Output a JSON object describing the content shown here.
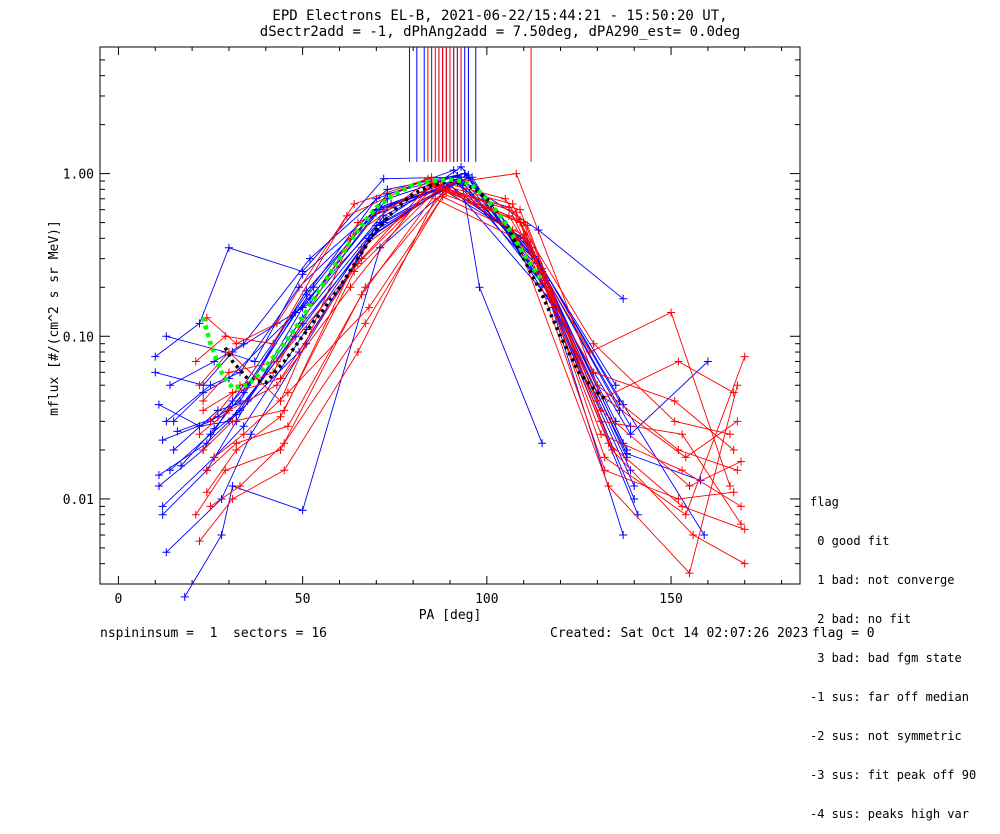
{
  "title_line1": "EPD Electrons EL-B, 2021-06-22/15:44:21 - 15:50:20 UT,",
  "title_line2": "dSectr2add = -1, dPhAng2add = 7.50deg, dPA290_est=   0.0deg",
  "footer": {
    "left": "nspininsum =  1  sectors = 16",
    "created": "Created: Sat Oct 14 02:07:26 2023",
    "flag": "flag = 0"
  },
  "legend": {
    "title": "flag",
    "items": [
      " 0 good fit",
      " 1 bad: not converge",
      " 2 bad: no fit",
      " 3 bad: bad fgm state",
      "-1 sus: far off median",
      "-2 sus: not symmetric",
      "-3 sus: fit peak off 90",
      "-4 sus: peaks high var"
    ]
  },
  "colors": {
    "blue": "#0000ff",
    "red": "#ff0000",
    "green": "#00ff00",
    "black": "#000000"
  },
  "chart_data": {
    "type": "line",
    "xlabel": "PA [deg]",
    "ylabel": "mflux [#/(cm^2 s sr MeV)]",
    "xlim": [
      -5,
      185
    ],
    "ylim": [
      0.003,
      6
    ],
    "yscale": "log",
    "x_ticks": [
      0,
      50,
      100,
      150
    ],
    "y_ticks": [
      {
        "value": 0.01,
        "label": "0.01"
      },
      {
        "value": 0.1,
        "label": "0.10"
      },
      {
        "value": 1.0,
        "label": "1.00"
      }
    ],
    "peak_markers": {
      "blue_x": [
        79,
        81,
        83,
        85,
        87,
        88,
        89,
        90,
        91,
        92,
        93,
        94,
        95,
        97
      ],
      "red_x": [
        84,
        85,
        86,
        87,
        88,
        89,
        90,
        91,
        92,
        93,
        112
      ],
      "y_from": 1.18
    },
    "median_black": {
      "x": [
        29,
        31,
        35,
        40,
        45,
        50,
        55,
        60,
        65,
        70,
        75,
        80,
        85,
        90,
        95,
        100,
        105,
        110,
        115,
        120,
        125,
        130,
        133
      ],
      "y": [
        0.085,
        0.07,
        0.055,
        0.052,
        0.07,
        0.1,
        0.14,
        0.2,
        0.3,
        0.45,
        0.6,
        0.75,
        0.85,
        0.9,
        0.85,
        0.7,
        0.5,
        0.3,
        0.18,
        0.1,
        0.06,
        0.045,
        0.04
      ]
    },
    "fit_green": {
      "x": [
        23,
        25,
        28,
        31,
        35,
        40,
        45,
        50,
        55,
        60,
        65,
        70,
        75,
        80,
        85,
        90,
        93,
        96,
        100,
        105,
        110,
        115
      ],
      "y": [
        0.13,
        0.09,
        0.06,
        0.048,
        0.05,
        0.065,
        0.09,
        0.13,
        0.2,
        0.3,
        0.45,
        0.62,
        0.75,
        0.85,
        0.9,
        0.92,
        0.9,
        0.85,
        0.7,
        0.5,
        0.32,
        0.22
      ]
    },
    "series": [
      {
        "color": "blue",
        "x": [
          10,
          22,
          30,
          50,
          72,
          92,
          114,
          137
        ],
        "y": [
          0.075,
          0.12,
          0.35,
          0.25,
          0.93,
          0.95,
          0.45,
          0.17
        ]
      },
      {
        "color": "blue",
        "x": [
          11,
          23,
          31,
          51,
          70,
          91,
          113,
          135
        ],
        "y": [
          0.012,
          0.02,
          0.04,
          0.18,
          0.7,
          1.05,
          0.3,
          0.03
        ]
      },
      {
        "color": "blue",
        "x": [
          12,
          24,
          32,
          50,
          71,
          93,
          115,
          138
        ],
        "y": [
          0.008,
          0.015,
          0.03,
          0.15,
          0.6,
          0.9,
          0.25,
          0.02
        ]
      },
      {
        "color": "blue",
        "x": [
          13,
          25,
          33,
          49,
          69,
          90,
          112,
          136
        ],
        "y": [
          0.03,
          0.05,
          0.06,
          0.2,
          0.55,
          0.85,
          0.35,
          0.04
        ]
      },
      {
        "color": "blue",
        "x": [
          14,
          26,
          34,
          52,
          73,
          94,
          116,
          139
        ],
        "y": [
          0.05,
          0.07,
          0.09,
          0.3,
          0.8,
          1.0,
          0.2,
          0.015
        ]
      },
      {
        "color": "blue",
        "x": [
          15,
          27,
          35,
          50,
          72,
          95,
          117,
          140
        ],
        "y": [
          0.02,
          0.035,
          0.04,
          0.12,
          0.5,
          0.95,
          0.18,
          0.01
        ]
      },
      {
        "color": "blue",
        "x": [
          13,
          28,
          36,
          51,
          70,
          92,
          114,
          137
        ],
        "y": [
          0.0047,
          0.01,
          0.025,
          0.09,
          0.45,
          0.9,
          0.28,
          0.006
        ]
      },
      {
        "color": "blue",
        "x": [
          11,
          22,
          30,
          48,
          68,
          88,
          110,
          135
        ],
        "y": [
          0.038,
          0.028,
          0.03,
          0.1,
          0.4,
          0.8,
          0.4,
          0.05
        ]
      },
      {
        "color": "blue",
        "x": [
          10,
          23,
          31,
          52,
          74,
          96,
          118,
          141
        ],
        "y": [
          0.06,
          0.05,
          0.08,
          0.16,
          0.65,
          0.95,
          0.15,
          0.008
        ]
      },
      {
        "color": "blue",
        "x": [
          14,
          25,
          33,
          50,
          71,
          93,
          115,
          137
        ],
        "y": [
          0.015,
          0.025,
          0.035,
          0.13,
          0.5,
          1.1,
          0.26,
          0.022
        ]
      },
      {
        "color": "blue",
        "x": [
          12,
          26,
          34,
          51,
          72,
          91,
          116,
          138
        ],
        "y": [
          0.009,
          0.018,
          0.028,
          0.11,
          0.55,
          0.92,
          0.22,
          0.018
        ]
      },
      {
        "color": "blue",
        "x": [
          16,
          27,
          35,
          53,
          73,
          94,
          112,
          139
        ],
        "y": [
          0.026,
          0.032,
          0.05,
          0.2,
          0.75,
          1.0,
          0.33,
          0.028
        ]
      },
      {
        "color": "blue",
        "x": [
          13,
          29,
          37,
          50,
          70,
          92,
          113,
          136
        ],
        "y": [
          0.1,
          0.08,
          0.07,
          0.24,
          0.6,
          0.88,
          0.31,
          0.035
        ]
      },
      {
        "color": "blue",
        "x": [
          11,
          24,
          32,
          49,
          69,
          90,
          117,
          140
        ],
        "y": [
          0.014,
          0.022,
          0.033,
          0.08,
          0.42,
          0.86,
          0.17,
          0.012
        ]
      },
      {
        "color": "blue",
        "x": [
          18,
          28,
          31,
          50,
          71,
          93,
          98,
          115
        ],
        "y": [
          0.0025,
          0.006,
          0.012,
          0.0085,
          0.35,
          0.95,
          0.2,
          0.022
        ]
      },
      {
        "color": "blue",
        "x": [
          15,
          23,
          30,
          52,
          71,
          95,
          114,
          138,
          158
        ],
        "y": [
          0.03,
          0.045,
          0.055,
          0.17,
          0.62,
          0.98,
          0.24,
          0.019,
          0.013
        ]
      },
      {
        "color": "blue",
        "x": [
          12,
          25,
          33,
          48,
          70,
          89,
          111,
          137,
          159
        ],
        "y": [
          0.023,
          0.03,
          0.04,
          0.14,
          0.48,
          0.83,
          0.38,
          0.038,
          0.006
        ]
      },
      {
        "color": "blue",
        "x": [
          17,
          26,
          34,
          51,
          73,
          92,
          115,
          139,
          160
        ],
        "y": [
          0.016,
          0.027,
          0.045,
          0.19,
          0.7,
          0.97,
          0.21,
          0.025,
          0.07
        ]
      },
      {
        "color": "red",
        "x": [
          22,
          30,
          44,
          65,
          86,
          108,
          130,
          152,
          168
        ],
        "y": [
          0.05,
          0.08,
          0.04,
          0.5,
          0.85,
          1.0,
          0.05,
          0.02,
          0.015
        ]
      },
      {
        "color": "red",
        "x": [
          23,
          31,
          45,
          66,
          87,
          109,
          131,
          153,
          169
        ],
        "y": [
          0.02,
          0.03,
          0.035,
          0.35,
          0.8,
          0.6,
          0.03,
          0.025,
          0.007
        ]
      },
      {
        "color": "red",
        "x": [
          24,
          32,
          43,
          64,
          85,
          107,
          129,
          151,
          167
        ],
        "y": [
          0.13,
          0.09,
          0.12,
          0.65,
          0.95,
          0.45,
          0.06,
          0.04,
          0.02
        ]
      },
      {
        "color": "red",
        "x": [
          21,
          29,
          44,
          67,
          88,
          110,
          132,
          154,
          170
        ],
        "y": [
          0.008,
          0.015,
          0.02,
          0.2,
          0.75,
          0.5,
          0.018,
          0.008,
          0.075
        ]
      },
      {
        "color": "red",
        "x": [
          25,
          33,
          42,
          63,
          84,
          106,
          128,
          150,
          166
        ],
        "y": [
          0.03,
          0.05,
          0.06,
          0.4,
          0.9,
          0.55,
          0.08,
          0.14,
          0.012
        ]
      },
      {
        "color": "red",
        "x": [
          22,
          31,
          45,
          65,
          86,
          108,
          133,
          155,
          168
        ],
        "y": [
          0.0055,
          0.01,
          0.015,
          0.08,
          0.7,
          0.4,
          0.012,
          0.0035,
          0.05
        ]
      },
      {
        "color": "red",
        "x": [
          23,
          30,
          43,
          66,
          85,
          107,
          130,
          152,
          167
        ],
        "y": [
          0.04,
          0.06,
          0.07,
          0.3,
          0.88,
          0.65,
          0.04,
          0.07,
          0.045
        ]
      },
      {
        "color": "red",
        "x": [
          24,
          32,
          44,
          64,
          87,
          109,
          131,
          153,
          169
        ],
        "y": [
          0.011,
          0.02,
          0.032,
          0.25,
          0.82,
          0.5,
          0.025,
          0.015,
          0.009
        ]
      },
      {
        "color": "red",
        "x": [
          26,
          34,
          46,
          68,
          89,
          111,
          134,
          156,
          170
        ],
        "y": [
          0.018,
          0.025,
          0.045,
          0.15,
          0.78,
          0.48,
          0.02,
          0.006,
          0.004
        ]
      },
      {
        "color": "red",
        "x": [
          21,
          29,
          42,
          62,
          84,
          105,
          129,
          151,
          166
        ],
        "y": [
          0.07,
          0.1,
          0.09,
          0.55,
          0.93,
          0.7,
          0.09,
          0.03,
          0.025
        ]
      },
      {
        "color": "red",
        "x": [
          22,
          30,
          43,
          63,
          85,
          106,
          130,
          154,
          168
        ],
        "y": [
          0.025,
          0.035,
          0.05,
          0.2,
          0.86,
          0.62,
          0.045,
          0.018,
          0.03
        ]
      },
      {
        "color": "red",
        "x": [
          25,
          33,
          45,
          67,
          88,
          110,
          132,
          152,
          167
        ],
        "y": [
          0.009,
          0.012,
          0.022,
          0.12,
          0.72,
          0.42,
          0.015,
          0.01,
          0.011
        ]
      },
      {
        "color": "red",
        "x": [
          23,
          31,
          44,
          65,
          86,
          108,
          131,
          155,
          169
        ],
        "y": [
          0.035,
          0.045,
          0.055,
          0.28,
          0.84,
          0.58,
          0.035,
          0.012,
          0.017
        ]
      },
      {
        "color": "red",
        "x": [
          24,
          32,
          46,
          66,
          87,
          109,
          133,
          153,
          170
        ],
        "y": [
          0.015,
          0.022,
          0.028,
          0.18,
          0.8,
          0.52,
          0.022,
          0.009,
          0.0065
        ]
      }
    ]
  }
}
